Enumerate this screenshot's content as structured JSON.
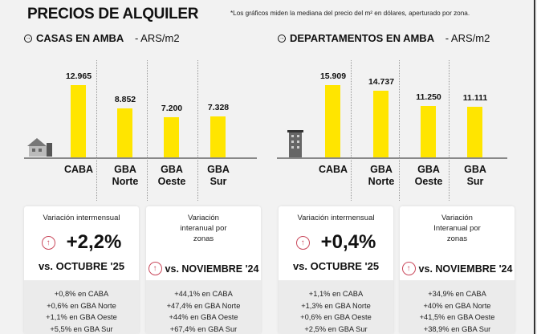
{
  "header": {
    "title": "PRECIOS DE ALQUILER",
    "note": "*Los gráficos miden la mediana del precio del m² en dólares, aperturado por zona."
  },
  "colors": {
    "bar": "#ffe500",
    "up": "#c9485b"
  },
  "chart_data": [
    {
      "type": "bar",
      "title": "CASAS EN AMBA",
      "unit": "- ARS/m2",
      "categories": [
        "CABA",
        "GBA Norte",
        "GBA Oeste",
        "GBA Sur"
      ],
      "values": [
        12965,
        8852,
        7200,
        7328
      ],
      "labels": [
        "12.965",
        "8.852",
        "7.200",
        "7.328"
      ],
      "ymax": 12965
    },
    {
      "type": "bar",
      "title": "DEPARTAMENTOS EN AMBA",
      "unit": "- ARS/m2",
      "categories": [
        "CABA",
        "GBA Norte",
        "GBA Oeste",
        "GBA Sur"
      ],
      "values": [
        15909,
        14737,
        11250,
        11111
      ],
      "labels": [
        "15.909",
        "14.737",
        "11.250",
        "11.111"
      ],
      "ymax": 15909
    }
  ],
  "cards": [
    {
      "caption": "Variación intermensual",
      "big": "+2,2%",
      "vs": "vs. OCTUBRE '25",
      "lines": [
        "+0,8% en CABA",
        "+0,6% en GBA Norte",
        "+1,1% en GBA Oeste",
        "+5,5% en GBA Sur"
      ]
    },
    {
      "caption": "Variación interanual por zonas",
      "vs": "vs. NOVIEMBRE '24",
      "lines": [
        "+44,1% en CABA",
        "+47,4% en GBA Norte",
        "+44% en GBA Oeste",
        "+67,4% en GBA Sur"
      ]
    },
    {
      "caption": "Variación intermensual",
      "big": "+0,4%",
      "vs": "vs. OCTUBRE '25",
      "lines": [
        "+1,1% en CABA",
        "+1,3% en GBA Norte",
        "+0,6% en GBA Oeste",
        "+2,5% en GBA Sur"
      ]
    },
    {
      "caption": "Variación Interanual por zonas",
      "vs": "vs. NOVIEMBRE '24",
      "lines": [
        "+34,9% en CABA",
        "+40% en GBA Norte",
        "+41,5% en GBA Oeste",
        "+38,9% en GBA Sur"
      ]
    }
  ]
}
